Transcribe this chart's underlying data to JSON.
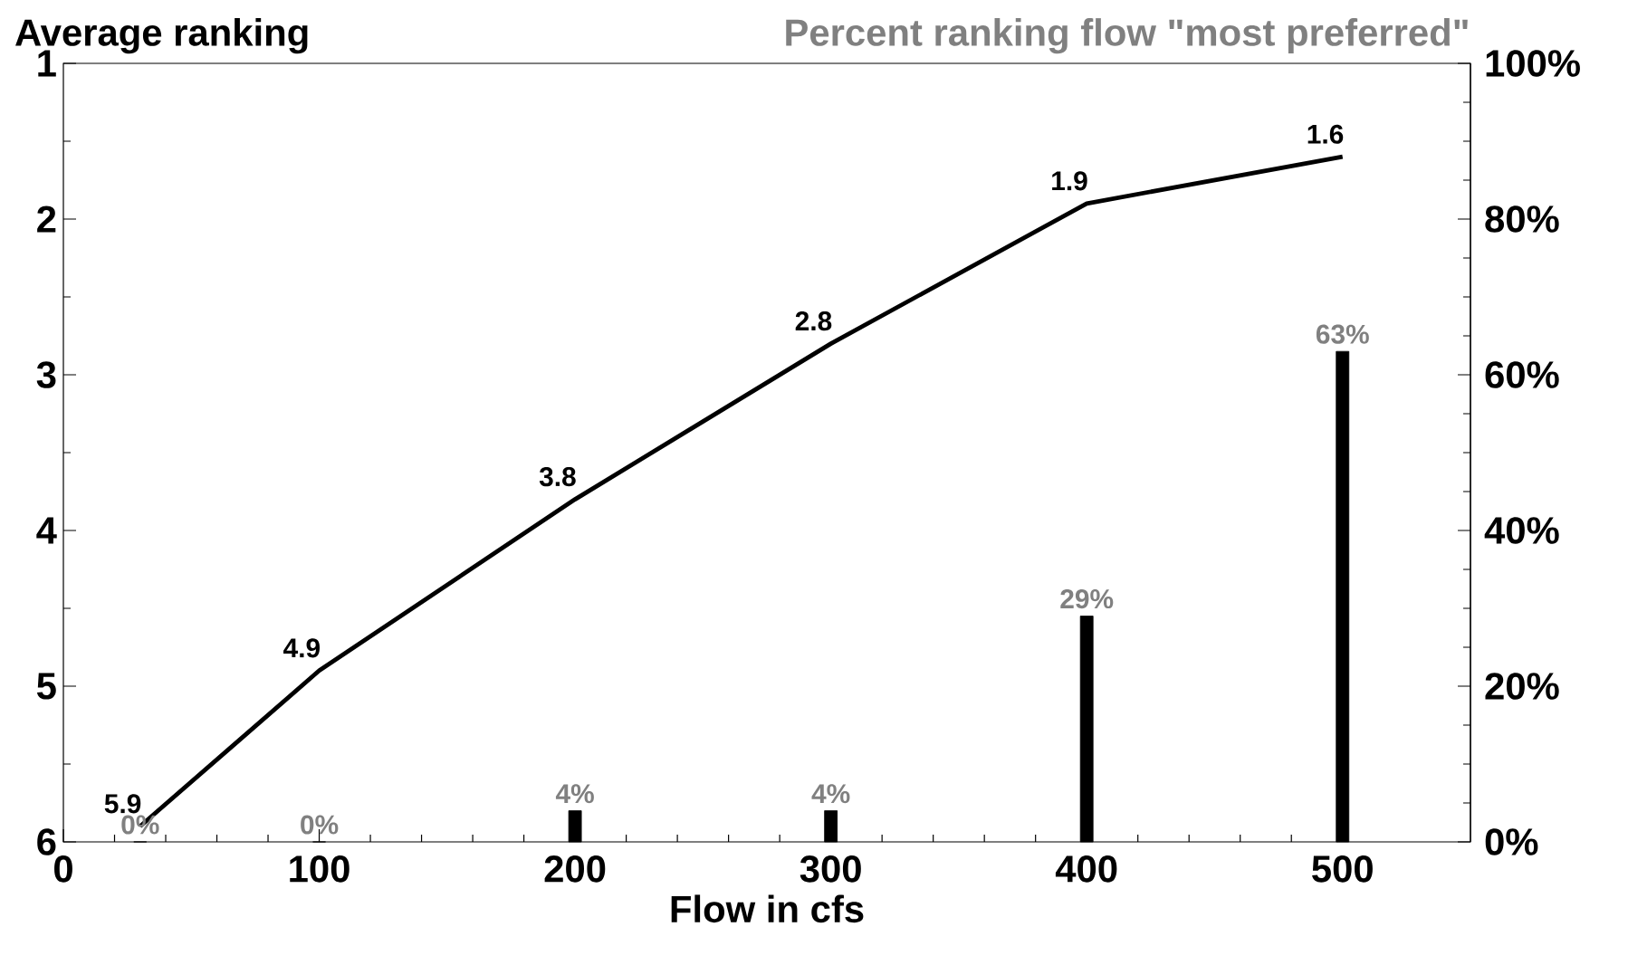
{
  "chart_data": {
    "type": "line",
    "xlabel": "Flow in cfs",
    "ylabel": "Average ranking",
    "y2label": "Percent ranking flow \"most preferred\"",
    "xlim": [
      0,
      550
    ],
    "xticks": [
      0,
      100,
      200,
      300,
      400,
      500
    ],
    "ylim": [
      6,
      1
    ],
    "yticks": [
      1,
      2,
      3,
      4,
      5,
      6
    ],
    "y2lim": [
      0,
      100
    ],
    "y2ticks": [
      {
        "value": 0,
        "label": "0%"
      },
      {
        "value": 20,
        "label": "20%"
      },
      {
        "value": 40,
        "label": "40%"
      },
      {
        "value": 60,
        "label": "60%"
      },
      {
        "value": 80,
        "label": "80%"
      },
      {
        "value": 100,
        "label": "100%"
      }
    ],
    "grid": false,
    "marker": "none",
    "line_style": "solid",
    "series": [
      {
        "color": "#000000",
        "x": [
          30,
          100,
          200,
          300,
          400,
          500
        ],
        "values": [
          5.9,
          4.9,
          3.8,
          2.8,
          1.9,
          1.6
        ],
        "value_labels": [
          "5.9",
          "4.9",
          "3.8",
          "2.8",
          "1.9",
          "1.6"
        ]
      },
      {
        "type": "bar",
        "axis": "y2",
        "color": "#000000",
        "x": [
          30,
          100,
          200,
          300,
          400,
          500
        ],
        "values": [
          0,
          0,
          4,
          4,
          29,
          63
        ],
        "value_labels": [
          "0%",
          "0%",
          "4%",
          "4%",
          "29%",
          "63%"
        ]
      }
    ]
  }
}
